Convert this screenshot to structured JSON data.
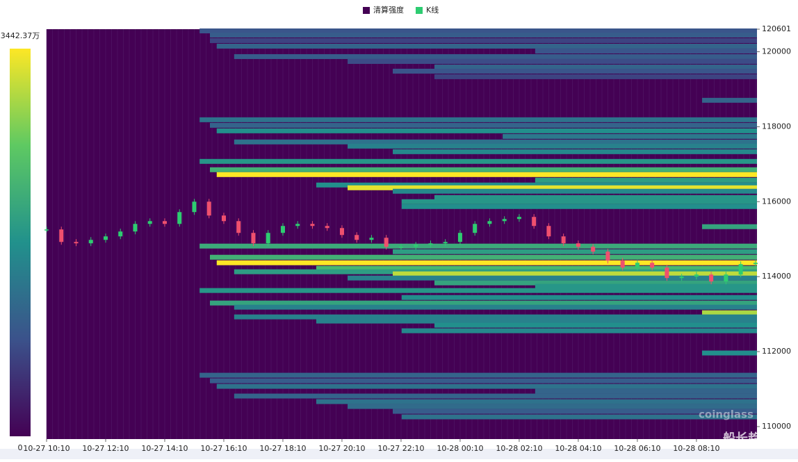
{
  "chart_data": {
    "type": "liquidation-heatmap",
    "legend": [
      {
        "name": "清算强度",
        "color": "#440154"
      },
      {
        "name": "K线",
        "color": "#2ecc71"
      }
    ],
    "colorscale": [
      "#440154",
      "#3b528b",
      "#21918c",
      "#5ec962",
      "#fde725"
    ],
    "clim": [
      0,
      3442.37
    ],
    "cticks": [
      0,
      {
        "value": 3442.37,
        "label": "3442.37万"
      }
    ],
    "xlim": [
      0,
      24.05
    ],
    "xticks": [
      {
        "value": 0,
        "label": "10-27 10:10"
      },
      {
        "value": 2,
        "label": "10-27 12:10"
      },
      {
        "value": 4,
        "label": "10-27 14:10"
      },
      {
        "value": 6,
        "label": "10-27 16:10"
      },
      {
        "value": 8,
        "label": "10-27 18:10"
      },
      {
        "value": 10,
        "label": "10-27 20:10"
      },
      {
        "value": 12,
        "label": "10-27 22:10"
      },
      {
        "value": 14,
        "label": "10-28 00:10"
      },
      {
        "value": 16,
        "label": "10-28 02:10"
      },
      {
        "value": 18,
        "label": "10-28 04:10"
      },
      {
        "value": 20,
        "label": "10-28 06:10"
      },
      {
        "value": 22,
        "label": "10-28 08:10"
      }
    ],
    "ylim": [
      109667,
      120601
    ],
    "yticks": [
      110000,
      112000,
      114000,
      116000,
      118000,
      120000,
      120601
    ],
    "bands": [
      {
        "price": 120555,
        "start": 5.18,
        "intensity": 900
      },
      {
        "price": 120444,
        "start": 5.53,
        "intensity": 1000
      },
      {
        "price": 120296,
        "start": 5.53,
        "intensity": 700
      },
      {
        "price": 120148,
        "start": 5.76,
        "intensity": 1100
      },
      {
        "price": 120018,
        "start": 16.54,
        "intensity": 900
      },
      {
        "price": 119870,
        "start": 6.35,
        "intensity": 1000
      },
      {
        "price": 119740,
        "start": 10.19,
        "intensity": 800
      },
      {
        "price": 119593,
        "start": 13.13,
        "intensity": 1100
      },
      {
        "price": 119481,
        "start": 11.72,
        "intensity": 900
      },
      {
        "price": 119333,
        "start": 13.13,
        "intensity": 700
      },
      {
        "price": 118704,
        "start": 22.19,
        "intensity": 1100
      },
      {
        "price": 118185,
        "start": 5.18,
        "intensity": 1300
      },
      {
        "price": 118037,
        "start": 5.53,
        "intensity": 1100
      },
      {
        "price": 117889,
        "start": 5.76,
        "intensity": 1700
      },
      {
        "price": 117741,
        "start": 15.44,
        "intensity": 1400
      },
      {
        "price": 117593,
        "start": 6.35,
        "intensity": 1300
      },
      {
        "price": 117481,
        "start": 10.19,
        "intensity": 1500
      },
      {
        "price": 117333,
        "start": 11.72,
        "intensity": 1600
      },
      {
        "price": 117074,
        "start": 5.18,
        "intensity": 1800
      },
      {
        "price": 116852,
        "start": 5.53,
        "intensity": 2200
      },
      {
        "price": 116722,
        "start": 5.76,
        "intensity": 3442
      },
      {
        "price": 116574,
        "start": 16.54,
        "intensity": 1900
      },
      {
        "price": 116444,
        "start": 9.13,
        "intensity": 1700
      },
      {
        "price": 116370,
        "start": 10.19,
        "intensity": 3300
      },
      {
        "price": 116278,
        "start": 11.72,
        "intensity": 1600
      },
      {
        "price": 116111,
        "start": 13.13,
        "intensity": 1800
      },
      {
        "price": 116000,
        "start": 12.02,
        "intensity": 1800
      },
      {
        "price": 115870,
        "start": 12.02,
        "intensity": 1700
      },
      {
        "price": 115333,
        "start": 22.19,
        "intensity": 2000
      },
      {
        "price": 114815,
        "start": 5.18,
        "intensity": 2100
      },
      {
        "price": 114667,
        "start": 11.72,
        "intensity": 1900
      },
      {
        "price": 114518,
        "start": 5.53,
        "intensity": 2200
      },
      {
        "price": 114370,
        "start": 5.76,
        "intensity": 3442
      },
      {
        "price": 114222,
        "start": 9.13,
        "intensity": 2300
      },
      {
        "price": 114130,
        "start": 6.35,
        "intensity": 1900
      },
      {
        "price": 114074,
        "start": 11.72,
        "intensity": 3100
      },
      {
        "price": 113963,
        "start": 10.19,
        "intensity": 1500
      },
      {
        "price": 113833,
        "start": 13.13,
        "intensity": 2000
      },
      {
        "price": 113741,
        "start": 16.54,
        "intensity": 1800
      },
      {
        "price": 113630,
        "start": 5.18,
        "intensity": 1800
      },
      {
        "price": 113444,
        "start": 12.02,
        "intensity": 1700
      },
      {
        "price": 113296,
        "start": 5.53,
        "intensity": 2000
      },
      {
        "price": 113185,
        "start": 6.35,
        "intensity": 1500
      },
      {
        "price": 113037,
        "start": 22.19,
        "intensity": 3000
      },
      {
        "price": 112926,
        "start": 6.35,
        "intensity": 1500
      },
      {
        "price": 112815,
        "start": 9.13,
        "intensity": 1500
      },
      {
        "price": 112704,
        "start": 13.13,
        "intensity": 1700
      },
      {
        "price": 112556,
        "start": 12.02,
        "intensity": 1600
      },
      {
        "price": 111963,
        "start": 22.19,
        "intensity": 1700
      },
      {
        "price": 111370,
        "start": 5.18,
        "intensity": 1100
      },
      {
        "price": 111222,
        "start": 5.53,
        "intensity": 1000
      },
      {
        "price": 111074,
        "start": 5.76,
        "intensity": 1300
      },
      {
        "price": 110944,
        "start": 16.54,
        "intensity": 1100
      },
      {
        "price": 110815,
        "start": 6.35,
        "intensity": 1100
      },
      {
        "price": 110667,
        "start": 9.13,
        "intensity": 1300
      },
      {
        "price": 110537,
        "start": 10.19,
        "intensity": 1200
      },
      {
        "price": 110407,
        "start": 11.72,
        "intensity": 1000
      },
      {
        "price": 110259,
        "start": 12.02,
        "intensity": 1300
      }
    ],
    "kline": {
      "x": [
        0,
        0.5,
        1,
        1.5,
        2,
        2.5,
        3,
        3.5,
        4,
        4.5,
        5,
        5.5,
        6,
        6.5,
        7,
        7.5,
        8,
        8.5,
        9,
        9.5,
        10,
        10.5,
        11,
        11.5,
        12,
        12.5,
        13,
        13.5,
        14,
        14.5,
        15,
        15.5,
        16,
        16.5,
        17,
        17.5,
        18,
        18.5,
        19,
        19.5,
        20,
        20.5,
        21,
        21.5,
        22,
        22.5,
        23,
        23.5,
        24
      ],
      "close": [
        115259,
        114926,
        114889,
        114981,
        115074,
        115204,
        115407,
        115481,
        115407,
        115722,
        116000,
        115630,
        115481,
        115167,
        114889,
        115167,
        115352,
        115407,
        115352,
        115296,
        115111,
        114981,
        115037,
        114796,
        114796,
        114852,
        114889,
        114926,
        115167,
        115407,
        115481,
        115537,
        115593,
        115352,
        115074,
        114889,
        114796,
        114667,
        114426,
        114241,
        114370,
        114241,
        113963,
        114000,
        114056,
        113870,
        114056,
        114333,
        114370
      ],
      "up_color": "#2ecc71",
      "down_color": "#f0506e"
    },
    "watermarks": [
      "coinglass",
      "船长趋势"
    ]
  }
}
